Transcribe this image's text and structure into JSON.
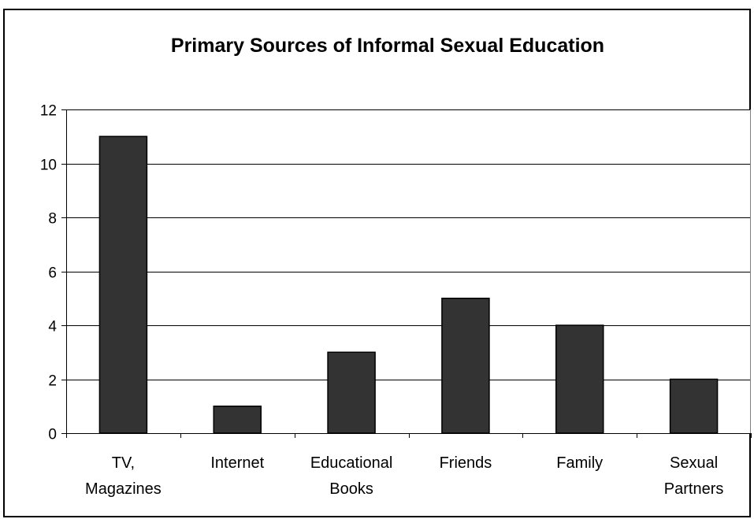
{
  "chart_data": {
    "type": "bar",
    "title": "Primary Sources of Informal Sexual Education",
    "xlabel": "",
    "ylabel": "",
    "categories": [
      [
        "TV,",
        "Magazines"
      ],
      [
        "Internet"
      ],
      [
        "Educational",
        "Books"
      ],
      [
        "Friends"
      ],
      [
        "Family"
      ],
      [
        "Sexual",
        "Partners"
      ]
    ],
    "values": [
      11,
      1,
      3,
      5,
      4,
      2
    ],
    "ylim": [
      0,
      12
    ],
    "yticks": [
      0,
      2,
      4,
      6,
      8,
      10,
      12
    ],
    "grid": true,
    "legend": "none",
    "colors": {
      "bar_fill": "#333333",
      "bar_stroke": "#000000",
      "gridline": "#000000",
      "plot_border": "#808080"
    }
  }
}
